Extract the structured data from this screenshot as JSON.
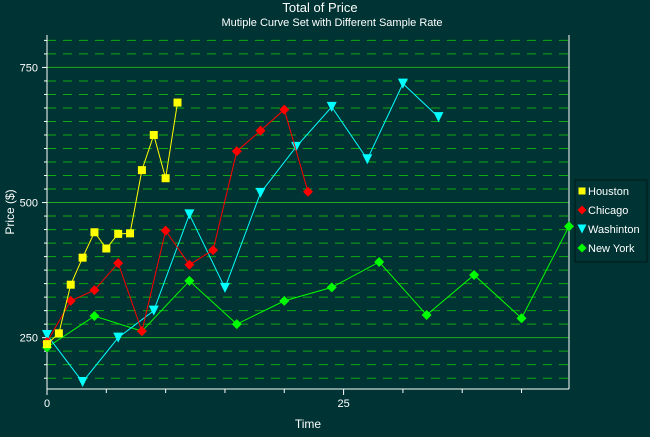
{
  "chart_data": {
    "type": "line",
    "title": "Total of Price",
    "subtitle": "Mutiple Curve Set with Different Sample Rate",
    "xlabel": "Time",
    "ylabel": "Price ($)",
    "xlim": [
      0,
      44
    ],
    "ylim": [
      155,
      810
    ],
    "x_ticks": [
      0,
      25
    ],
    "y_ticks": [
      250,
      500,
      750
    ],
    "grid": true,
    "legend_position": "right",
    "colors": {
      "background": "#003333",
      "axis": "#ffffff",
      "grid_major": "#22aa22",
      "grid_minor": "#11aa11"
    },
    "series": [
      {
        "name": "Houston",
        "color": "#ffff00",
        "marker": "square",
        "x": [
          0,
          1,
          2,
          3,
          4,
          5,
          6,
          7,
          8,
          9,
          10,
          11
        ],
        "y": [
          238,
          258,
          348,
          398,
          445,
          415,
          442,
          443,
          560,
          625,
          545,
          685
        ]
      },
      {
        "name": "Chicago",
        "color": "#ff0000",
        "marker": "diamond",
        "x": [
          0,
          2,
          4,
          6,
          8,
          10,
          12,
          14,
          16,
          18,
          20,
          22
        ],
        "y": [
          242,
          318,
          338,
          388,
          262,
          448,
          385,
          412,
          595,
          633,
          672,
          520
        ]
      },
      {
        "name": "Washinton",
        "color": "#00ffff",
        "marker": "triangle-down",
        "x": [
          0,
          3,
          6,
          9,
          12,
          15,
          18,
          21,
          24,
          27,
          30,
          33
        ],
        "y": [
          255,
          168,
          250,
          300,
          478,
          342,
          518,
          603,
          677,
          580,
          720,
          658
        ]
      },
      {
        "name": "New York",
        "color": "#00ff00",
        "marker": "diamond",
        "x": [
          0,
          4,
          8,
          12,
          16,
          20,
          24,
          28,
          32,
          36,
          40,
          44
        ],
        "y": [
          232,
          290,
          262,
          355,
          275,
          318,
          343,
          390,
          292,
          366,
          286,
          456
        ]
      }
    ]
  }
}
